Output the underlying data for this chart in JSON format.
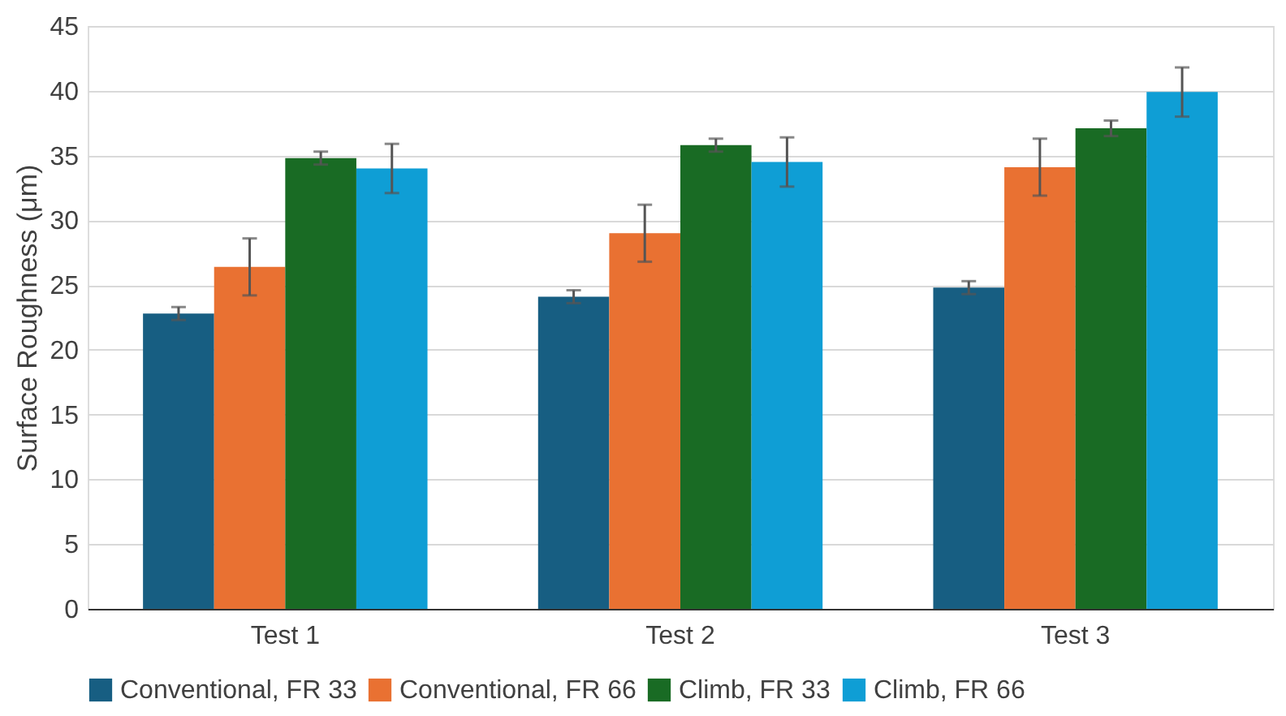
{
  "chart_data": {
    "type": "bar",
    "ylabel": "Surface Roughness (μm)",
    "categories": [
      "Test 1",
      "Test 2",
      "Test 3"
    ],
    "series": [
      {
        "name": "Conventional, FR 33",
        "color": "#175e82",
        "values": [
          22.8,
          24.1,
          24.8
        ],
        "errors": [
          0.5,
          0.5,
          0.5
        ]
      },
      {
        "name": "Conventional, FR 66",
        "color": "#e97132",
        "values": [
          26.4,
          29.0,
          34.1
        ],
        "errors": [
          2.2,
          2.2,
          2.2
        ]
      },
      {
        "name": "Climb, FR 33",
        "color": "#196b24",
        "values": [
          34.8,
          35.8,
          37.1
        ],
        "errors": [
          0.5,
          0.5,
          0.6
        ]
      },
      {
        "name": "Climb, FR 66",
        "color": "#0f9ed5",
        "values": [
          34.0,
          34.5,
          39.9
        ],
        "errors": [
          1.9,
          1.9,
          1.9
        ]
      }
    ],
    "ylim": [
      0,
      45
    ],
    "yticks": [
      0,
      5,
      10,
      15,
      20,
      25,
      30,
      35,
      40,
      45
    ],
    "grid": "y",
    "legend": "bottom"
  }
}
